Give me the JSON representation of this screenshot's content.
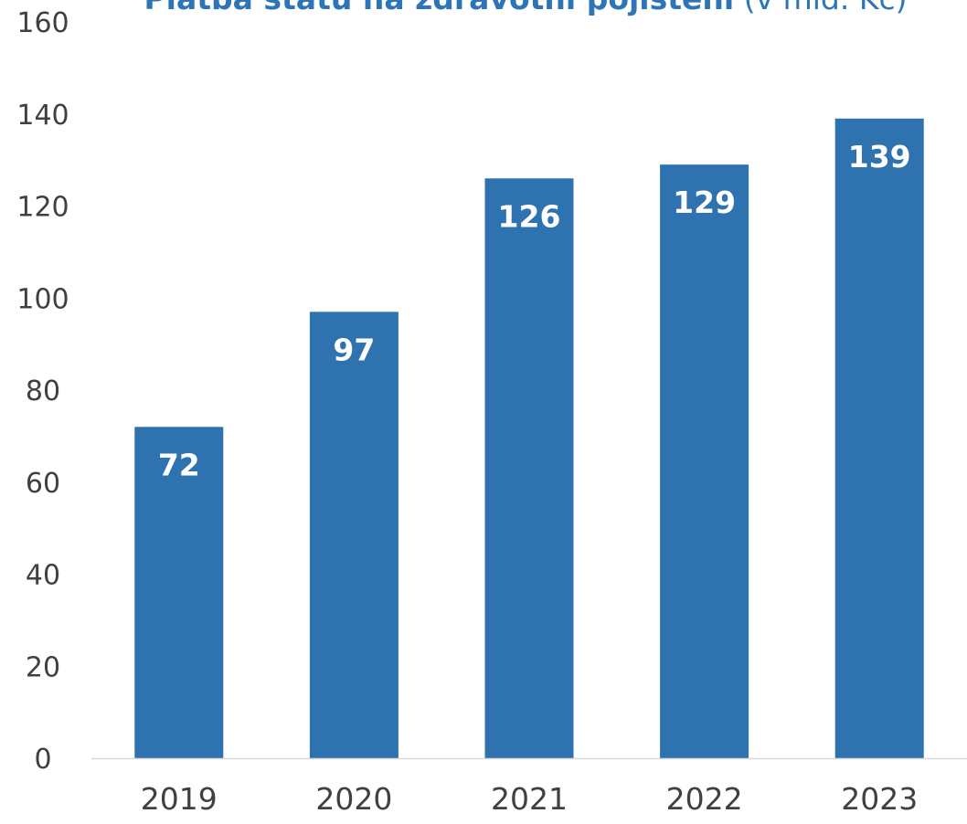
{
  "chart_data": {
    "type": "bar",
    "title_bold": "Platba státu na zdravotní pojištění",
    "title_rest": " (v mld. Kč)",
    "categories": [
      "2019",
      "2020",
      "2021",
      "2022",
      "2023"
    ],
    "values": [
      72,
      97,
      126,
      129,
      139
    ],
    "data_labels": [
      "72",
      "97",
      "126",
      "129",
      "139"
    ],
    "y_ticks": [
      0,
      20,
      40,
      60,
      80,
      100,
      120,
      140,
      160
    ],
    "ylim": [
      0,
      160
    ],
    "xlabel": "",
    "ylabel": "",
    "grid": false,
    "legend": "none",
    "bar_color": "#2e73b0",
    "axis_color": "#d9d9d9"
  }
}
